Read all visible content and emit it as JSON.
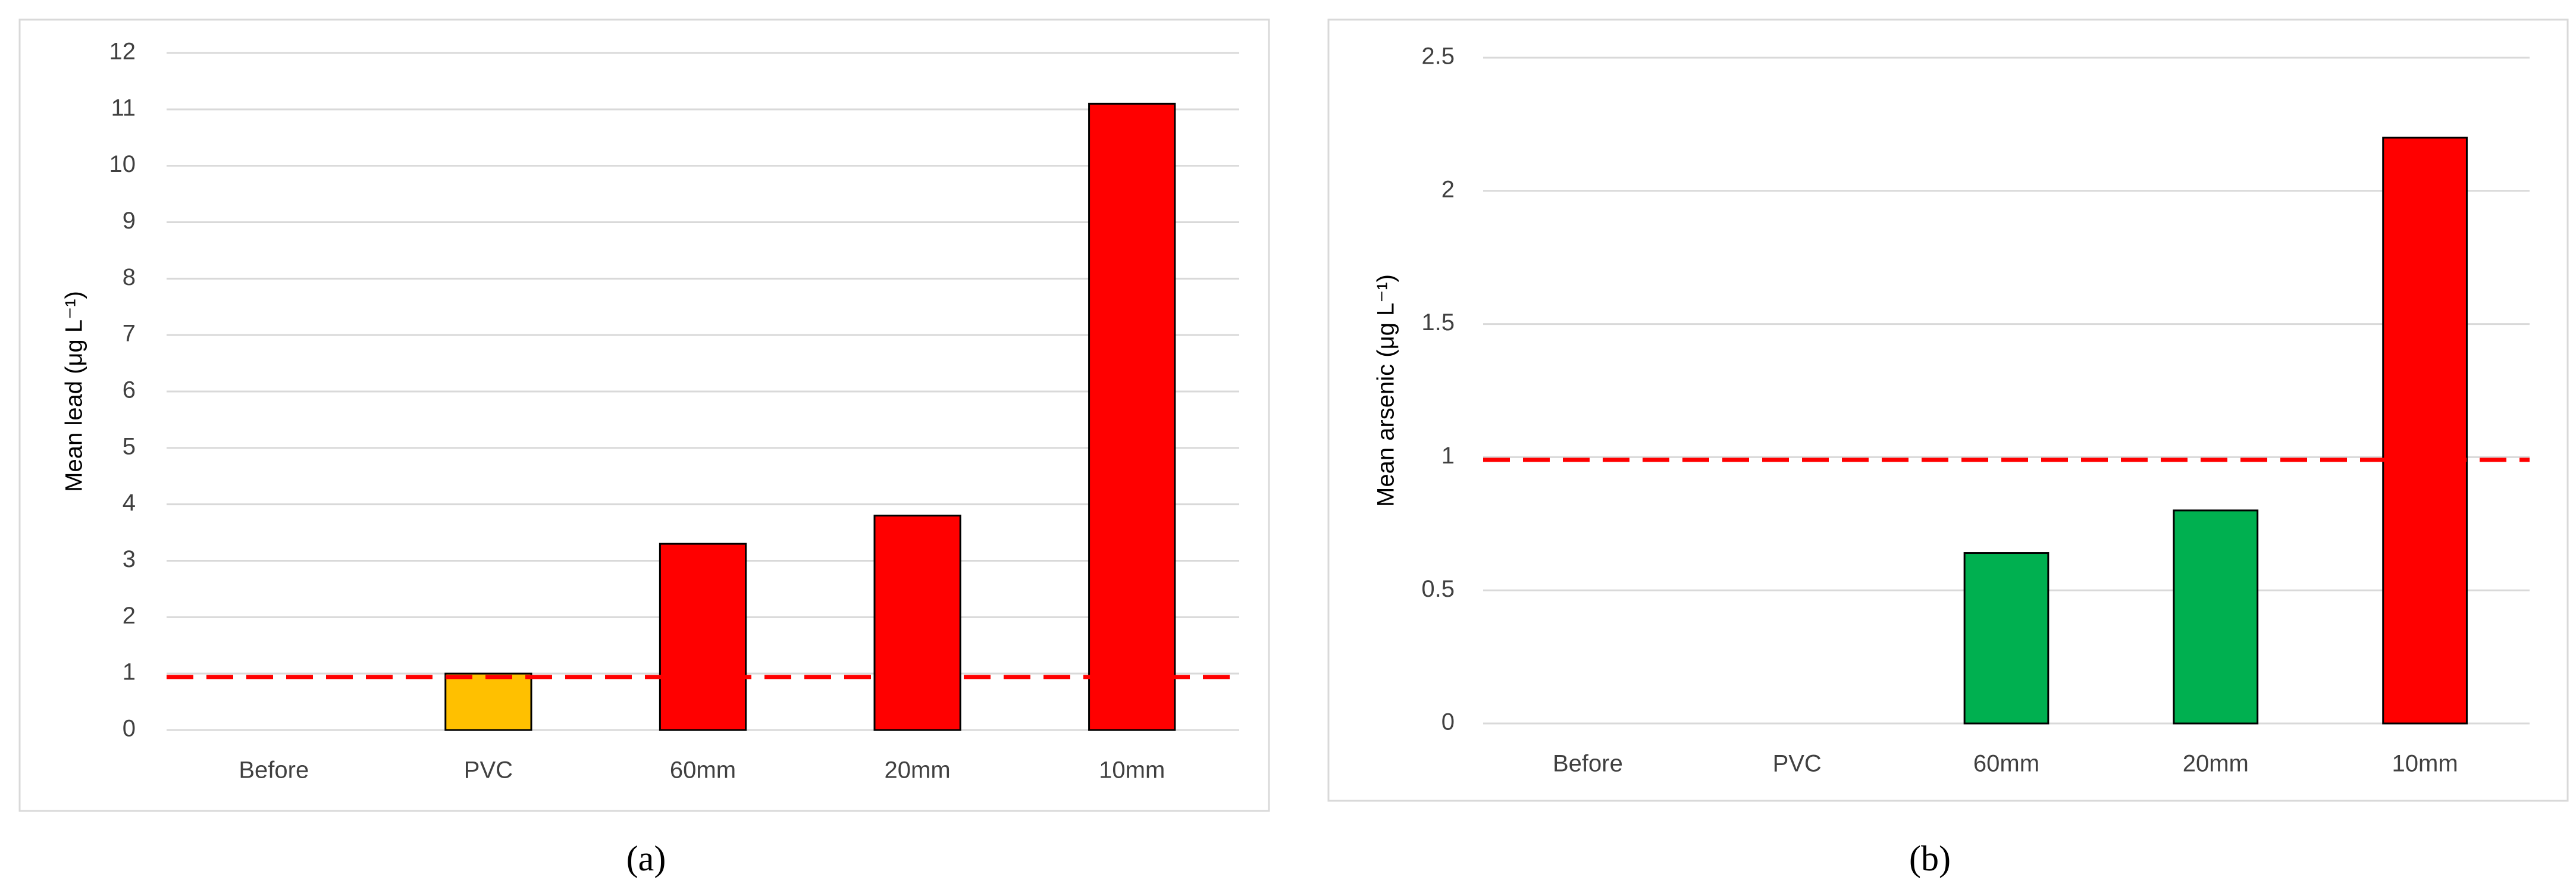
{
  "chart_data": [
    {
      "type": "bar",
      "panel_label": "(a)",
      "y_label": "Mean lead (μg L⁻¹)",
      "categories": [
        "Before",
        "PVC",
        "60mm",
        "20mm",
        "10mm"
      ],
      "values": [
        null,
        1.0,
        3.3,
        3.8,
        11.1
      ],
      "colors": [
        "#ff0000",
        "#ffc000",
        "#ff0000",
        "#ff0000",
        "#ff0000"
      ],
      "ylim": [
        0,
        12
      ],
      "yticks": [
        0,
        1,
        2,
        3,
        4,
        5,
        6,
        7,
        8,
        9,
        10,
        11,
        12
      ],
      "grid": true,
      "reference_line": {
        "value": 0.94,
        "color": "#ff0000",
        "style": "dashed"
      }
    },
    {
      "type": "bar",
      "panel_label": "(b)",
      "y_label": "Mean arsenic (μg L⁻¹)",
      "categories": [
        "Before",
        "PVC",
        "60mm",
        "20mm",
        "10mm"
      ],
      "values": [
        null,
        null,
        0.64,
        0.8,
        2.2
      ],
      "colors": [
        "#00b050",
        "#00b050",
        "#00b050",
        "#00b050",
        "#ff0000"
      ],
      "ylim": [
        0,
        2.5
      ],
      "yticks": [
        0,
        0.5,
        1,
        1.5,
        2,
        2.5
      ],
      "grid": true,
      "reference_line": {
        "value": 0.99,
        "color": "#ff0000",
        "style": "dashed"
      }
    }
  ]
}
